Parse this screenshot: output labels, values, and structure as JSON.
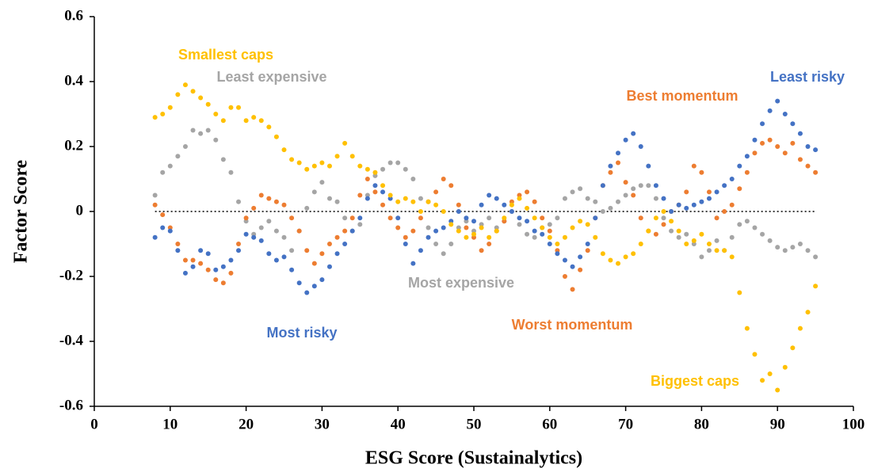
{
  "chart_data": {
    "type": "scatter",
    "x_label": "ESG Score (Sustainalytics)",
    "y_label": "Factor Score",
    "xlim": [
      0,
      100
    ],
    "xticks": [
      0,
      10,
      20,
      30,
      40,
      50,
      60,
      70,
      80,
      90,
      100
    ],
    "ylim": [
      -0.6,
      0.6
    ],
    "yticks": [
      0.6,
      0.4,
      0.2,
      0,
      -0.2,
      -0.4,
      -0.6
    ],
    "x": [
      8,
      9,
      10,
      11,
      12,
      13,
      14,
      15,
      16,
      17,
      18,
      19,
      20,
      21,
      22,
      23,
      24,
      25,
      26,
      27,
      28,
      29,
      30,
      31,
      32,
      33,
      34,
      35,
      36,
      37,
      38,
      39,
      40,
      41,
      42,
      43,
      44,
      45,
      46,
      47,
      48,
      49,
      50,
      51,
      52,
      53,
      54,
      55,
      56,
      57,
      58,
      59,
      60,
      61,
      62,
      63,
      64,
      65,
      66,
      67,
      68,
      69,
      70,
      71,
      72,
      73,
      74,
      75,
      76,
      77,
      78,
      79,
      80,
      81,
      82,
      83,
      84,
      85,
      86,
      87,
      88,
      89,
      90,
      91,
      92,
      93,
      94,
      95
    ],
    "series": [
      {
        "color": "#a5a5a5",
        "values": [
          0.05,
          0.12,
          0.14,
          0.17,
          0.2,
          0.25,
          0.24,
          0.25,
          0.22,
          0.16,
          0.12,
          0.03,
          -0.03,
          -0.07,
          -0.05,
          -0.03,
          -0.06,
          -0.08,
          -0.12,
          -0.06,
          0.01,
          0.06,
          0.09,
          0.04,
          0.03,
          -0.02,
          -0.06,
          -0.04,
          0.05,
          0.11,
          0.13,
          0.15,
          0.15,
          0.13,
          0.1,
          0.04,
          -0.05,
          -0.1,
          -0.13,
          -0.1,
          -0.05,
          -0.03,
          -0.06,
          -0.04,
          -0.02,
          -0.05,
          -0.03,
          0.0,
          -0.04,
          -0.07,
          -0.08,
          -0.05,
          -0.04,
          -0.02,
          0.04,
          0.06,
          0.07,
          0.04,
          0.03,
          0.0,
          0.01,
          0.03,
          0.05,
          0.07,
          0.08,
          0.08,
          0.04,
          -0.02,
          -0.06,
          -0.08,
          -0.07,
          -0.1,
          -0.14,
          -0.12,
          -0.09,
          -0.12,
          -0.08,
          -0.04,
          -0.03,
          -0.05,
          -0.07,
          -0.09,
          -0.11,
          -0.12,
          -0.11,
          -0.1,
          -0.12,
          -0.14
        ]
      },
      {
        "color": "#ed7d31",
        "values": [
          0.02,
          -0.01,
          -0.05,
          -0.1,
          -0.15,
          -0.15,
          -0.16,
          -0.18,
          -0.21,
          -0.22,
          -0.19,
          -0.1,
          -0.02,
          0.01,
          0.05,
          0.04,
          0.03,
          0.02,
          -0.02,
          -0.06,
          -0.12,
          -0.16,
          -0.13,
          -0.1,
          -0.08,
          -0.06,
          -0.02,
          0.05,
          0.1,
          0.06,
          0.02,
          -0.02,
          -0.05,
          -0.08,
          -0.06,
          -0.02,
          0.03,
          0.06,
          0.1,
          0.08,
          0.02,
          -0.05,
          -0.08,
          -0.12,
          -0.1,
          -0.06,
          -0.03,
          0.03,
          0.05,
          0.06,
          0.03,
          -0.02,
          -0.06,
          -0.12,
          -0.2,
          -0.24,
          -0.18,
          -0.12,
          -0.02,
          0.08,
          0.12,
          0.15,
          0.09,
          0.05,
          -0.02,
          -0.06,
          -0.07,
          -0.04,
          0.0,
          0.02,
          0.06,
          0.14,
          0.12,
          0.06,
          -0.02,
          0.0,
          0.02,
          0.07,
          0.12,
          0.18,
          0.21,
          0.22,
          0.2,
          0.18,
          0.21,
          0.16,
          0.14,
          0.12
        ]
      },
      {
        "color": "#4472c4",
        "values": [
          -0.08,
          -0.05,
          -0.06,
          -0.12,
          -0.19,
          -0.17,
          -0.12,
          -0.13,
          -0.18,
          -0.17,
          -0.15,
          -0.12,
          -0.07,
          -0.08,
          -0.09,
          -0.13,
          -0.15,
          -0.14,
          -0.18,
          -0.22,
          -0.25,
          -0.23,
          -0.21,
          -0.17,
          -0.13,
          -0.1,
          -0.06,
          -0.02,
          0.04,
          0.08,
          0.06,
          0.04,
          -0.02,
          -0.1,
          -0.16,
          -0.12,
          -0.08,
          -0.06,
          -0.05,
          -0.03,
          0.0,
          -0.02,
          -0.03,
          0.02,
          0.05,
          0.04,
          0.02,
          0.0,
          -0.02,
          -0.03,
          -0.06,
          -0.07,
          -0.1,
          -0.13,
          -0.15,
          -0.17,
          -0.14,
          -0.1,
          -0.02,
          0.08,
          0.14,
          0.18,
          0.22,
          0.24,
          0.2,
          0.14,
          0.08,
          0.04,
          0.0,
          0.02,
          0.01,
          0.02,
          0.03,
          0.04,
          0.06,
          0.08,
          0.1,
          0.14,
          0.17,
          0.22,
          0.27,
          0.31,
          0.34,
          0.3,
          0.27,
          0.24,
          0.2,
          0.19
        ]
      },
      {
        "color": "#ffc000",
        "values": [
          0.29,
          0.3,
          0.32,
          0.36,
          0.39,
          0.37,
          0.35,
          0.33,
          0.3,
          0.28,
          0.32,
          0.32,
          0.28,
          0.29,
          0.28,
          0.26,
          0.23,
          0.19,
          0.16,
          0.15,
          0.13,
          0.14,
          0.15,
          0.14,
          0.17,
          0.21,
          0.17,
          0.14,
          0.13,
          0.12,
          0.08,
          0.05,
          0.03,
          0.04,
          0.03,
          0.0,
          0.03,
          0.02,
          0.0,
          -0.04,
          -0.06,
          -0.08,
          -0.07,
          -0.05,
          -0.08,
          -0.06,
          -0.02,
          0.02,
          0.04,
          0.01,
          -0.02,
          -0.05,
          -0.08,
          -0.1,
          -0.08,
          -0.05,
          -0.03,
          -0.04,
          -0.08,
          -0.13,
          -0.15,
          -0.16,
          -0.14,
          -0.13,
          -0.1,
          -0.06,
          -0.02,
          0.0,
          -0.03,
          -0.06,
          -0.1,
          -0.09,
          -0.07,
          -0.1,
          -0.12,
          -0.12,
          -0.14,
          -0.25,
          -0.36,
          -0.44,
          -0.52,
          -0.5,
          -0.55,
          -0.48,
          -0.42,
          -0.36,
          -0.31,
          -0.23
        ]
      }
    ],
    "annotations": [
      {
        "text": "Smallest caps",
        "color": "#ffc000"
      },
      {
        "text": "Least expensive",
        "color": "#a5a5a5"
      },
      {
        "text": "Best momentum",
        "color": "#ed7d31"
      },
      {
        "text": "Least risky",
        "color": "#4472c4"
      },
      {
        "text": "Most expensive",
        "color": "#a5a5a5"
      },
      {
        "text": "Most risky",
        "color": "#4472c4"
      },
      {
        "text": "Worst momentum",
        "color": "#ed7d31"
      },
      {
        "text": "Biggest caps",
        "color": "#ffc000"
      }
    ]
  }
}
